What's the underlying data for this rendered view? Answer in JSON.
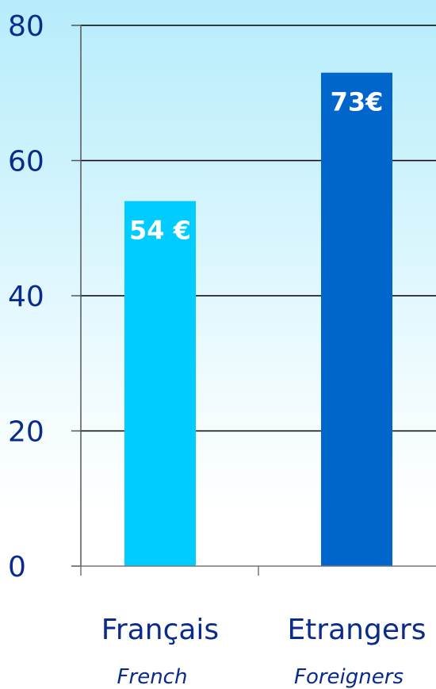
{
  "chart_data": {
    "type": "bar",
    "categories": [
      "Français",
      "Etrangers"
    ],
    "sub_labels": [
      "French",
      "Foreigners"
    ],
    "values": [
      54,
      73
    ],
    "data_labels": [
      "54 €",
      "73€"
    ],
    "bar_colors": [
      "#00ccff",
      "#0066cc"
    ],
    "ylim": [
      0,
      80
    ],
    "yticks": [
      0,
      20,
      40,
      60,
      80
    ],
    "ytick_labels": [
      "0",
      "20",
      "40",
      "60",
      "80"
    ],
    "grid": true,
    "title": "",
    "xlabel": "",
    "ylabel": ""
  }
}
